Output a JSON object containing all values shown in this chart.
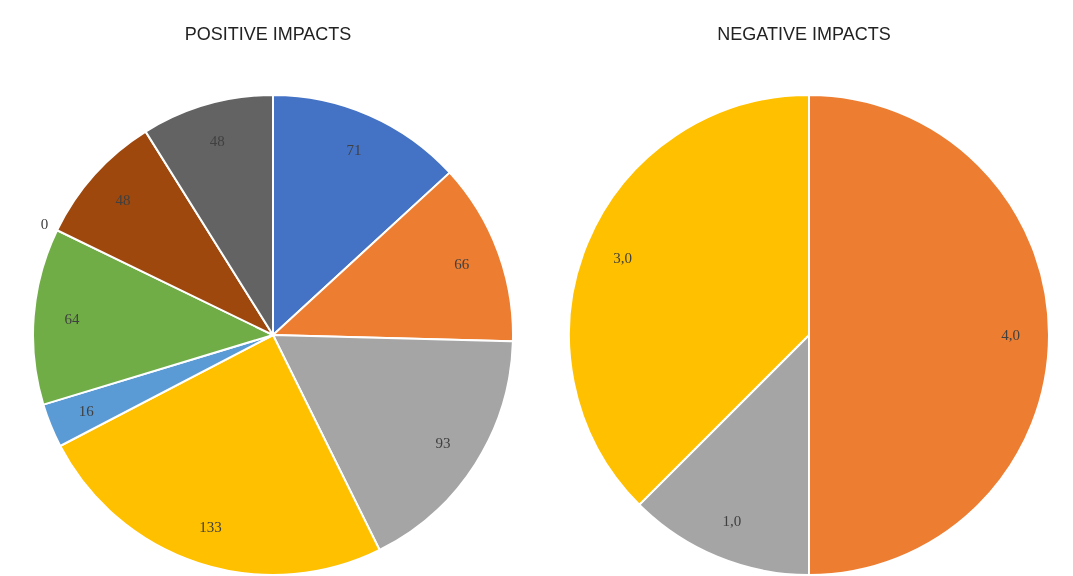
{
  "chart_data": [
    {
      "type": "pie",
      "title": "POSITIVE IMPACTS",
      "categories": [
        null,
        null,
        null,
        null,
        null,
        null,
        null,
        null,
        null
      ],
      "values": [
        71,
        66,
        93,
        133,
        16,
        64,
        0,
        48,
        48
      ],
      "colors": [
        "#4472c4",
        "#ed7d31",
        "#a5a5a5",
        "#ffc000",
        "#5b9bd5",
        "#70ad47",
        "#264478",
        "#9e480e",
        "#636363"
      ],
      "value_labels": [
        "71",
        "66",
        "93",
        "133",
        "16",
        "64",
        "0",
        "48",
        "48"
      ]
    },
    {
      "type": "pie",
      "title": "NEGATIVE IMPACTS",
      "categories": [
        null,
        null,
        null
      ],
      "values": [
        4,
        1,
        3
      ],
      "colors": [
        "#ed7d31",
        "#a5a5a5",
        "#ffc000"
      ],
      "value_labels": [
        "4,0",
        "1,0",
        "3,0"
      ]
    }
  ]
}
